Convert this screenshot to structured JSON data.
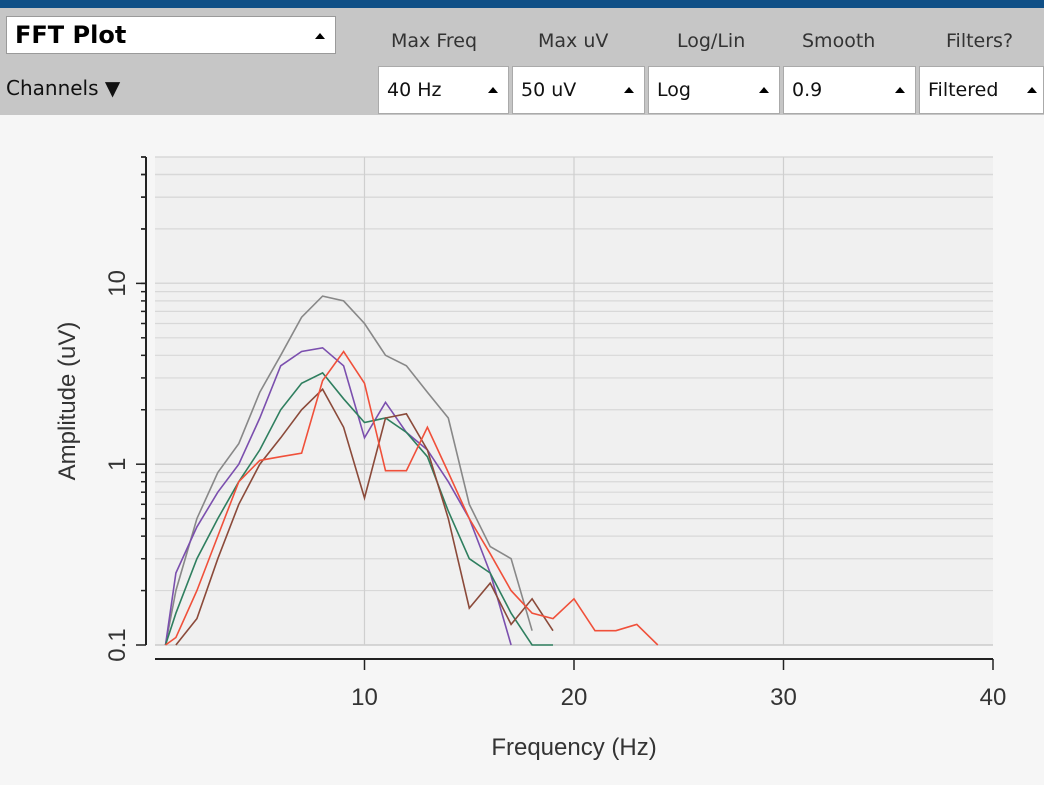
{
  "widget": {
    "title": "FFT Plot",
    "channels_label": "Channels ▼"
  },
  "controls": {
    "headers": [
      "Max Freq",
      "Max uV",
      "Log/Lin",
      "Smooth",
      "Filters?"
    ],
    "values": [
      "40 Hz",
      "50 uV",
      "Log",
      "0.9",
      "Filtered"
    ]
  },
  "colors": {
    "toolbar": "#c6c6c6",
    "plot_background": "#f6f6f6",
    "series": [
      "#888888",
      "#7b4fae",
      "#2f7f5f",
      "#8b4a3a",
      "#f0503a"
    ]
  },
  "chart_data": {
    "type": "line",
    "xlabel": "Frequency (Hz)",
    "ylabel": "Amplitude (uV)",
    "xlim": [
      0,
      40
    ],
    "ylim": [
      0.1,
      50
    ],
    "yscale": "log",
    "x_ticks": [
      10,
      20,
      30,
      40
    ],
    "y_ticks": [
      0.1,
      1,
      10
    ],
    "y_tick_labels": [
      "0.1",
      "1",
      "10"
    ],
    "grid": true,
    "series": [
      {
        "x": [
          0.5,
          1,
          2,
          3,
          4,
          5,
          6,
          7,
          8,
          9,
          10,
          11,
          12,
          13,
          14,
          15,
          16,
          17,
          18
        ],
        "values": [
          0.1,
          0.2,
          0.5,
          0.9,
          1.3,
          2.5,
          4,
          6.5,
          8.5,
          8,
          6,
          4,
          3.5,
          2.5,
          1.8,
          0.6,
          0.35,
          0.3,
          0.12
        ]
      },
      {
        "x": [
          0.5,
          1,
          2,
          3,
          4,
          5,
          6,
          7,
          8,
          9,
          10,
          11,
          12,
          13,
          14,
          15,
          16,
          17
        ],
        "values": [
          0.1,
          0.25,
          0.45,
          0.7,
          1,
          1.8,
          3.5,
          4.2,
          4.4,
          3.5,
          1.4,
          2.2,
          1.5,
          1.2,
          0.8,
          0.5,
          0.25,
          0.1
        ]
      },
      {
        "x": [
          0.5,
          1,
          2,
          3,
          4,
          5,
          6,
          7,
          8,
          9,
          10,
          11,
          12,
          13,
          14,
          15,
          16,
          17,
          18,
          19
        ],
        "values": [
          0.1,
          0.15,
          0.3,
          0.5,
          0.8,
          1.2,
          2,
          2.8,
          3.2,
          2.3,
          1.7,
          1.8,
          1.5,
          1.1,
          0.55,
          0.3,
          0.25,
          0.15,
          0.1,
          0.1
        ]
      },
      {
        "x": [
          1,
          2,
          3,
          4,
          5,
          6,
          7,
          8,
          9,
          10,
          11,
          12,
          13,
          14,
          15,
          16,
          17,
          18,
          19
        ],
        "values": [
          0.1,
          0.14,
          0.3,
          0.6,
          1,
          1.4,
          2,
          2.6,
          1.6,
          0.65,
          1.8,
          1.9,
          1.2,
          0.5,
          0.16,
          0.22,
          0.13,
          0.18,
          0.12
        ]
      },
      {
        "x": [
          0.5,
          1,
          2,
          3,
          4,
          5,
          6,
          7,
          8,
          9,
          10,
          11,
          12,
          13,
          14,
          15,
          16,
          17,
          18,
          19,
          20,
          21,
          22,
          23,
          24
        ],
        "values": [
          0.1,
          0.11,
          0.2,
          0.4,
          0.8,
          1.05,
          1.1,
          1.15,
          2.9,
          4.2,
          2.8,
          0.92,
          0.92,
          1.6,
          0.9,
          0.5,
          0.32,
          0.2,
          0.15,
          0.14,
          0.18,
          0.12,
          0.12,
          0.13,
          0.1
        ]
      }
    ]
  }
}
